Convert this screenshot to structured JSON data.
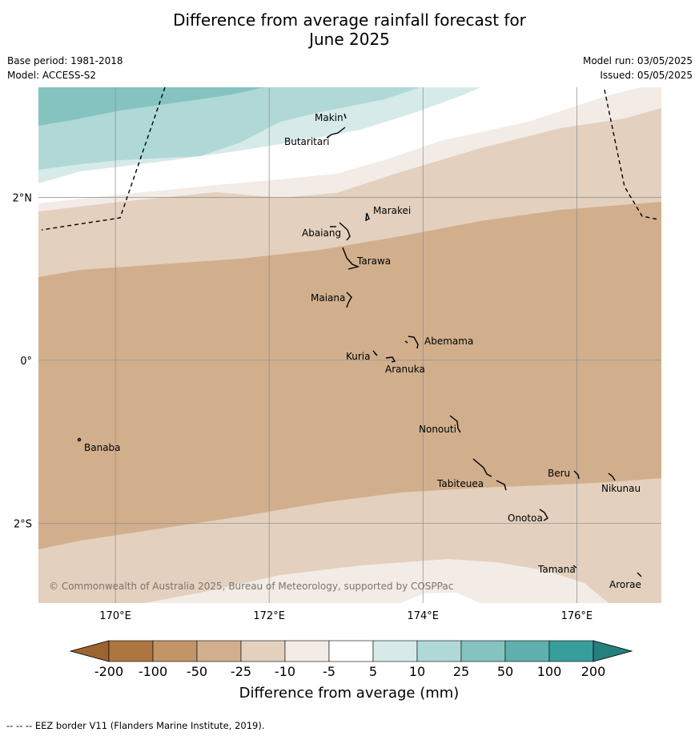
{
  "title": {
    "line1": "Difference from average rainfall forecast for",
    "line2": "June 2025"
  },
  "meta_left": {
    "base_period": "Base period: 1981-2018",
    "model": "Model: ACCESS-S2"
  },
  "meta_right": {
    "model_run": "Model run: 03/05/2025",
    "issued": "Issued: 05/05/2025"
  },
  "map": {
    "lon_range": [
      169,
      177.1
    ],
    "lat_range": [
      -2.98,
      3.35
    ],
    "lat_labels": [
      {
        "lat": 2,
        "text": "2°N"
      },
      {
        "lat": 0,
        "text": "0°"
      },
      {
        "lat": -2,
        "text": "2°S"
      }
    ],
    "lon_labels": [
      {
        "lon": 170,
        "text": "170°E"
      },
      {
        "lon": 172,
        "text": "172°E"
      },
      {
        "lon": 174,
        "text": "174°E"
      },
      {
        "lon": 176,
        "text": "176°E"
      }
    ],
    "islands": [
      {
        "name": "Makin",
        "label": "Makin"
      },
      {
        "name": "Butaritari",
        "label": "Butaritari"
      },
      {
        "name": "Marakei",
        "label": "Marakei"
      },
      {
        "name": "Abaiang",
        "label": "Abaiang"
      },
      {
        "name": "Tarawa",
        "label": "Tarawa"
      },
      {
        "name": "Maiana",
        "label": "Maiana"
      },
      {
        "name": "Abemama",
        "label": "Abemama"
      },
      {
        "name": "Kuria",
        "label": "Kuria"
      },
      {
        "name": "Aranuka",
        "label": "Aranuka"
      },
      {
        "name": "Nonouti",
        "label": "Nonouti"
      },
      {
        "name": "Banaba",
        "label": "Banaba"
      },
      {
        "name": "Beru",
        "label": "Beru"
      },
      {
        "name": "Nikunau",
        "label": "Nikunau"
      },
      {
        "name": "Tabiteuea",
        "label": "Tabiteuea"
      },
      {
        "name": "Onotoa",
        "label": "Onotoa"
      },
      {
        "name": "Tamana",
        "label": "Tamana"
      },
      {
        "name": "Arorae",
        "label": "Arorae"
      }
    ],
    "copyright": "© Commonwealth of Australia 2025, Bureau of Meteorology, supported by COSPPac"
  },
  "colorbar": {
    "title": "Difference from average (mm)",
    "ticks": [
      "-200",
      "-100",
      "-50",
      "-25",
      "-10",
      "-5",
      "5",
      "10",
      "25",
      "50",
      "100",
      "200"
    ],
    "colors": [
      "#ad7540",
      "#c29466",
      "#d1af8d",
      "#e3d0be",
      "#f3ebe6",
      "#ffffff",
      "#d6eaea",
      "#b0d8d7",
      "#85c3c1",
      "#5fb0ae",
      "#389e9c"
    ],
    "extend_low_color": "#9b6430",
    "extend_high_color": "#257f7d"
  },
  "footnote": "--  --  -- EEZ border V11 (Flanders Marine Institute, 2019)."
}
